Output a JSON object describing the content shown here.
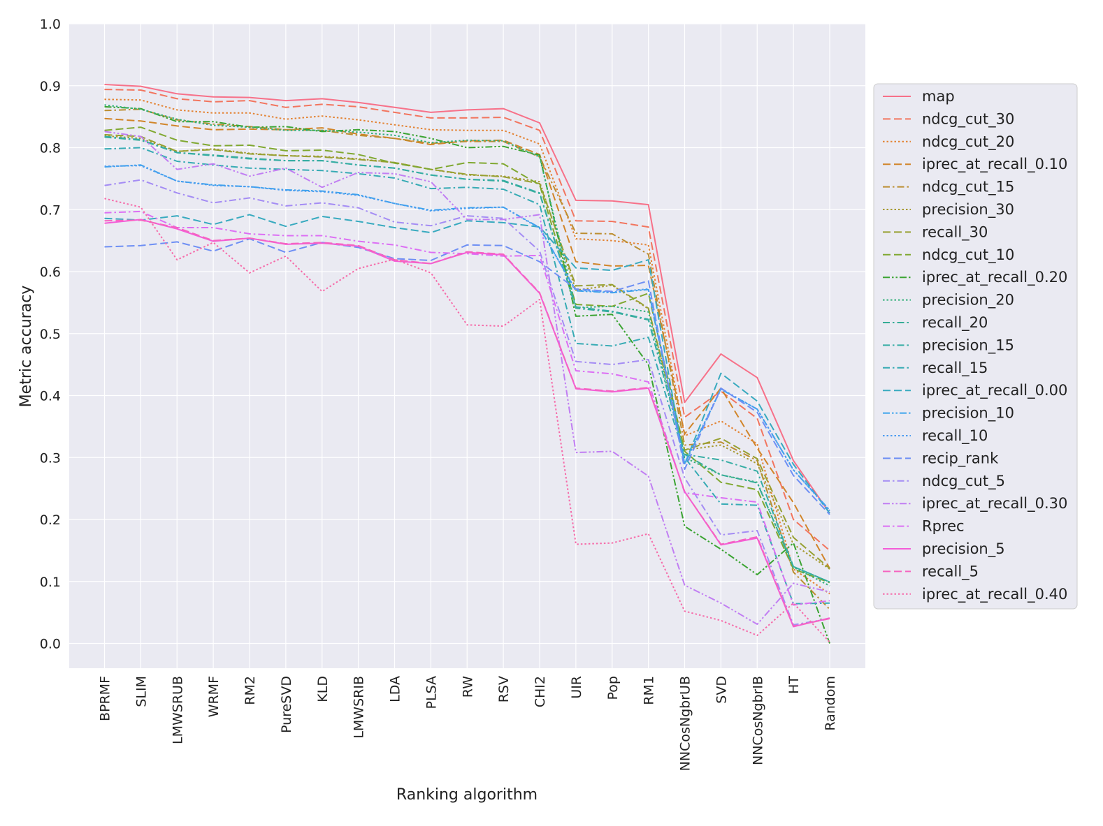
{
  "chart_data": {
    "type": "line",
    "xlabel": "Ranking algorithm",
    "ylabel": "Metric accuracy",
    "ylim": [
      -0.04,
      1.0
    ],
    "yticks": [
      "0.0",
      "0.1",
      "0.2",
      "0.3",
      "0.4",
      "0.5",
      "0.6",
      "0.7",
      "0.8",
      "0.9",
      "1.0"
    ],
    "grid": true,
    "legend_position": "right",
    "categories": [
      "BPRMF",
      "SLIM",
      "LMWSRUB",
      "WRMF",
      "RM2",
      "PureSVD",
      "KLD",
      "LMWSRIB",
      "LDA",
      "PLSA",
      "RW",
      "RSV",
      "CHI2",
      "UIR",
      "Pop",
      "RM1",
      "NNCosNgbrUB",
      "SVD",
      "NNCosNgbrIB",
      "HT",
      "Random"
    ],
    "series": [
      {
        "name": "map",
        "color": "#f77189",
        "dash": "solid",
        "values": [
          0.902,
          0.899,
          0.887,
          0.882,
          0.881,
          0.876,
          0.879,
          0.873,
          0.865,
          0.857,
          0.861,
          0.863,
          0.84,
          0.715,
          0.714,
          0.708,
          0.389,
          0.467,
          0.429,
          0.295,
          0.21
        ]
      },
      {
        "name": "ndcg_cut_30",
        "color": "#f2755e",
        "dash": "dashed",
        "values": [
          0.894,
          0.893,
          0.879,
          0.874,
          0.876,
          0.865,
          0.87,
          0.866,
          0.857,
          0.848,
          0.848,
          0.849,
          0.828,
          0.682,
          0.681,
          0.672,
          0.365,
          0.407,
          0.363,
          0.2,
          0.15
        ]
      },
      {
        "name": "ndcg_cut_20",
        "color": "#e38231",
        "dash": "dotted",
        "values": [
          0.878,
          0.877,
          0.861,
          0.856,
          0.856,
          0.846,
          0.851,
          0.845,
          0.837,
          0.829,
          0.828,
          0.828,
          0.806,
          0.653,
          0.65,
          0.643,
          0.335,
          0.359,
          0.322,
          0.12,
          0.08
        ]
      },
      {
        "name": "iprec_at_recall_0.10",
        "color": "#d1852a",
        "dash": "dashed",
        "values": [
          0.847,
          0.843,
          0.835,
          0.829,
          0.83,
          0.829,
          0.832,
          0.822,
          0.815,
          0.805,
          0.811,
          0.812,
          0.789,
          0.616,
          0.609,
          0.61,
          0.338,
          0.412,
          0.315,
          0.227,
          0.121
        ]
      },
      {
        "name": "ndcg_cut_15",
        "color": "#bc8e31",
        "dash": "dashdot",
        "values": [
          0.86,
          0.862,
          0.845,
          0.838,
          0.834,
          0.829,
          0.828,
          0.82,
          0.815,
          0.807,
          0.81,
          0.81,
          0.785,
          0.662,
          0.661,
          0.628,
          0.32,
          0.325,
          0.295,
          0.115,
          0.055
        ]
      },
      {
        "name": "precision_30",
        "color": "#a79a31",
        "dash": "dotted",
        "values": [
          0.819,
          0.815,
          0.794,
          0.798,
          0.791,
          0.787,
          0.786,
          0.782,
          0.776,
          0.765,
          0.756,
          0.754,
          0.745,
          0.57,
          0.578,
          0.54,
          0.312,
          0.32,
          0.29,
          0.16,
          0.12
        ]
      },
      {
        "name": "recall_30",
        "color": "#97a031",
        "dash": "dashed",
        "values": [
          0.821,
          0.818,
          0.794,
          0.797,
          0.79,
          0.787,
          0.785,
          0.781,
          0.776,
          0.765,
          0.757,
          0.753,
          0.742,
          0.577,
          0.579,
          0.541,
          0.312,
          0.331,
          0.298,
          0.171,
          0.121
        ]
      },
      {
        "name": "ndcg_cut_10",
        "color": "#80a831",
        "dash": "dashed",
        "values": [
          0.828,
          0.833,
          0.812,
          0.803,
          0.804,
          0.795,
          0.796,
          0.789,
          0.775,
          0.765,
          0.776,
          0.774,
          0.74,
          0.547,
          0.544,
          0.565,
          0.31,
          0.26,
          0.248,
          0.12,
          0.098
        ]
      },
      {
        "name": "iprec_at_recall_0.20",
        "color": "#3ba432",
        "dash": "dashdotdot",
        "values": [
          0.866,
          0.863,
          0.842,
          0.842,
          0.833,
          0.834,
          0.826,
          0.829,
          0.826,
          0.815,
          0.8,
          0.802,
          0.788,
          0.528,
          0.531,
          0.45,
          0.189,
          0.152,
          0.111,
          0.162,
          0.0
        ]
      },
      {
        "name": "precision_20",
        "color": "#33b07a",
        "dash": "dotted",
        "values": [
          0.869,
          0.862,
          0.846,
          0.836,
          0.833,
          0.828,
          0.828,
          0.825,
          0.82,
          0.808,
          0.812,
          0.811,
          0.785,
          0.542,
          0.544,
          0.535,
          0.3,
          0.272,
          0.26,
          0.123,
          0.093
        ]
      },
      {
        "name": "recall_20",
        "color": "#35ac96",
        "dash": "dashdot",
        "values": [
          0.817,
          0.812,
          0.792,
          0.788,
          0.783,
          0.779,
          0.779,
          0.772,
          0.767,
          0.756,
          0.749,
          0.746,
          0.726,
          0.541,
          0.535,
          0.522,
          0.305,
          0.272,
          0.259,
          0.124,
          0.099
        ]
      },
      {
        "name": "precision_15",
        "color": "#36ada4",
        "dash": "dashdot",
        "values": [
          0.818,
          0.813,
          0.792,
          0.787,
          0.782,
          0.779,
          0.779,
          0.772,
          0.767,
          0.756,
          0.749,
          0.747,
          0.727,
          0.543,
          0.536,
          0.523,
          0.305,
          0.296,
          0.278,
          0.124,
          0.099
        ]
      },
      {
        "name": "recall_15",
        "color": "#37abb4",
        "dash": "dashdot",
        "values": [
          0.798,
          0.8,
          0.778,
          0.772,
          0.767,
          0.765,
          0.763,
          0.758,
          0.751,
          0.734,
          0.736,
          0.733,
          0.708,
          0.484,
          0.48,
          0.494,
          0.3,
          0.225,
          0.223,
          0.064,
          0.065
        ]
      },
      {
        "name": "iprec_at_recall_0.00",
        "color": "#38aabf",
        "dash": "dashed",
        "values": [
          0.686,
          0.683,
          0.69,
          0.676,
          0.692,
          0.673,
          0.689,
          0.681,
          0.671,
          0.663,
          0.682,
          0.679,
          0.672,
          0.606,
          0.602,
          0.619,
          0.289,
          0.436,
          0.391,
          0.289,
          0.21
        ]
      },
      {
        "name": "precision_10",
        "color": "#3ba3ec",
        "dash": "dashdotdot",
        "values": [
          0.769,
          0.772,
          0.746,
          0.74,
          0.737,
          0.732,
          0.73,
          0.724,
          0.71,
          0.699,
          0.703,
          0.704,
          0.671,
          0.569,
          0.566,
          0.571,
          0.29,
          0.41,
          0.378,
          0.28,
          0.215
        ]
      },
      {
        "name": "recall_10",
        "color": "#4b9bf0",
        "dash": "dotted",
        "values": [
          0.77,
          0.771,
          0.746,
          0.739,
          0.737,
          0.731,
          0.729,
          0.723,
          0.71,
          0.698,
          0.702,
          0.704,
          0.67,
          0.57,
          0.567,
          0.572,
          0.29,
          0.411,
          0.378,
          0.28,
          0.214
        ]
      },
      {
        "name": "recip_rank",
        "color": "#6e8ff4",
        "dash": "dashed",
        "values": [
          0.64,
          0.642,
          0.648,
          0.633,
          0.653,
          0.631,
          0.647,
          0.639,
          0.621,
          0.618,
          0.643,
          0.642,
          0.616,
          0.572,
          0.568,
          0.585,
          0.281,
          0.412,
          0.373,
          0.271,
          0.208
        ]
      },
      {
        "name": "ndcg_cut_5",
        "color": "#a48cf4",
        "dash": "dashdot",
        "values": [
          0.739,
          0.748,
          0.727,
          0.711,
          0.719,
          0.706,
          0.711,
          0.703,
          0.68,
          0.674,
          0.69,
          0.686,
          0.633,
          0.455,
          0.45,
          0.458,
          0.267,
          0.175,
          0.182,
          0.03,
          0.04
        ]
      },
      {
        "name": "iprec_at_recall_0.30",
        "color": "#c17ef3",
        "dash": "dashdotdot",
        "values": [
          0.826,
          0.818,
          0.765,
          0.774,
          0.754,
          0.767,
          0.736,
          0.76,
          0.758,
          0.745,
          0.684,
          0.684,
          0.692,
          0.308,
          0.31,
          0.27,
          0.094,
          0.065,
          0.031,
          0.097,
          0.083
        ]
      },
      {
        "name": "Rprec",
        "color": "#dc6ff4",
        "dash": "dashdot",
        "values": [
          0.695,
          0.697,
          0.671,
          0.671,
          0.661,
          0.658,
          0.658,
          0.649,
          0.643,
          0.631,
          0.629,
          0.625,
          0.626,
          0.44,
          0.435,
          0.422,
          0.243,
          0.235,
          0.228,
          0.062,
          0.069
        ]
      },
      {
        "name": "precision_5",
        "color": "#f45cd8",
        "dash": "solid",
        "values": [
          0.678,
          0.684,
          0.669,
          0.649,
          0.654,
          0.644,
          0.646,
          0.641,
          0.617,
          0.613,
          0.631,
          0.627,
          0.565,
          0.411,
          0.406,
          0.412,
          0.245,
          0.159,
          0.17,
          0.027,
          0.041
        ]
      },
      {
        "name": "recall_5",
        "color": "#f564c0",
        "dash": "dashed",
        "values": [
          0.682,
          0.683,
          0.671,
          0.65,
          0.654,
          0.645,
          0.647,
          0.642,
          0.619,
          0.613,
          0.632,
          0.628,
          0.566,
          0.412,
          0.407,
          0.413,
          0.245,
          0.16,
          0.172,
          0.028,
          0.04
        ]
      },
      {
        "name": "iprec_at_recall_0.40",
        "color": "#f66ba9",
        "dash": "dotted",
        "values": [
          0.718,
          0.704,
          0.619,
          0.647,
          0.598,
          0.625,
          0.568,
          0.605,
          0.62,
          0.598,
          0.514,
          0.512,
          0.555,
          0.16,
          0.162,
          0.177,
          0.052,
          0.037,
          0.013,
          0.065,
          0.002
        ]
      }
    ]
  }
}
